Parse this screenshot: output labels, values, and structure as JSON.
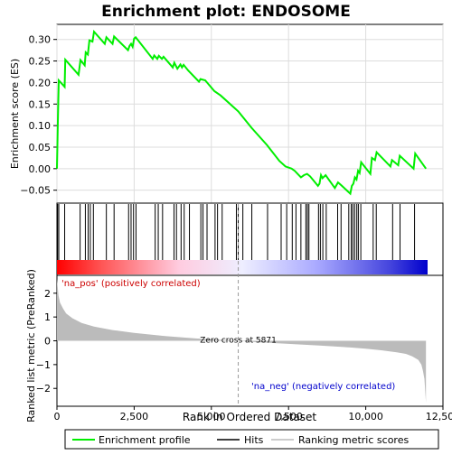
{
  "chart_data": {
    "type": "line",
    "title": "Enrichment plot: ENDOSOME",
    "top_panel": {
      "ylabel": "Enrichment score (ES)",
      "ylim": [
        -0.08,
        0.335
      ],
      "yticks": [
        -0.05,
        0.0,
        0.05,
        0.1,
        0.15,
        0.2,
        0.25,
        0.3
      ],
      "ytick_labels": [
        "−0.05",
        "0.00",
        "0.05",
        "0.10",
        "0.15",
        "0.20",
        "0.25",
        "0.30"
      ],
      "series": [
        {
          "name": "Enrichment profile",
          "color": "#00ee00",
          "x": [
            0,
            30,
            60,
            250,
            270,
            700,
            760,
            900,
            930,
            1000,
            1050,
            1150,
            1200,
            1550,
            1600,
            1800,
            1850,
            2300,
            2350,
            2400,
            2450,
            2500,
            2550,
            3100,
            3150,
            3250,
            3300,
            3400,
            3450,
            3750,
            3800,
            3900,
            4000,
            4050,
            4100,
            4250,
            4600,
            4650,
            4800,
            5100,
            5300,
            5871,
            6300,
            6800,
            7200,
            7400,
            7600,
            7700,
            7900,
            8000,
            8100,
            8200,
            8450,
            8500,
            8550,
            8600,
            8700,
            8800,
            9000,
            9100,
            9200,
            9500,
            9550,
            9600,
            9650,
            9700,
            9750,
            9800,
            9850,
            10150,
            10200,
            10300,
            10350,
            10800,
            10850,
            11050,
            11100,
            11550,
            11600,
            11950
          ],
          "y": [
            0.0,
            0.11,
            0.205,
            0.19,
            0.253,
            0.218,
            0.252,
            0.24,
            0.27,
            0.265,
            0.298,
            0.295,
            0.318,
            0.29,
            0.305,
            0.29,
            0.307,
            0.275,
            0.285,
            0.29,
            0.283,
            0.302,
            0.305,
            0.255,
            0.263,
            0.255,
            0.262,
            0.255,
            0.26,
            0.235,
            0.246,
            0.232,
            0.242,
            0.235,
            0.241,
            0.228,
            0.202,
            0.208,
            0.205,
            0.18,
            0.17,
            0.133,
            0.095,
            0.055,
            0.018,
            0.005,
            0.0,
            -0.005,
            -0.02,
            -0.015,
            -0.012,
            -0.018,
            -0.04,
            -0.035,
            -0.015,
            -0.022,
            -0.015,
            -0.025,
            -0.045,
            -0.032,
            -0.038,
            -0.058,
            -0.04,
            -0.035,
            -0.02,
            -0.025,
            -0.005,
            -0.01,
            0.015,
            -0.012,
            0.025,
            0.02,
            0.038,
            0.005,
            0.02,
            0.008,
            0.03,
            0.0,
            0.035,
            0.0
          ]
        }
      ]
    },
    "hits_panel": {
      "hit_positions": [
        20,
        60,
        250,
        750,
        920,
        1010,
        1080,
        1180,
        1600,
        1850,
        2320,
        2400,
        2480,
        2560,
        3180,
        3280,
        3420,
        3790,
        3870,
        4020,
        4120,
        4290,
        4660,
        4730,
        4860,
        5120,
        5200,
        5350,
        5810,
        5870,
        6020,
        6310,
        6820,
        7260,
        7440,
        7620,
        7740,
        7900,
        8060,
        8110,
        8160,
        8470,
        8530,
        8610,
        8720,
        9090,
        9200,
        9450,
        9530,
        9580,
        9640,
        9710,
        9760,
        9840,
        10240,
        10340,
        10870,
        11110,
        11580
      ],
      "gradient_stops": [
        "#ff0000",
        "#ff9999",
        "#ffccdd",
        "#ddddff",
        "#7777ee",
        "#0000cc"
      ]
    },
    "bottom_panel": {
      "ylabel": "Ranked list metric (PreRanked)",
      "xlabel": "Rank in Ordered Dataset",
      "ylim": [
        -2.75,
        2.75
      ],
      "yticks": [
        -2,
        -1,
        0,
        1,
        2
      ],
      "ytick_labels": [
        "−2",
        "−1",
        "0",
        "1",
        "2"
      ],
      "metric_curve": {
        "x": [
          0,
          50,
          100,
          200,
          300,
          500,
          800,
          1200,
          1800,
          2500,
          3500,
          4500,
          5000,
          5871,
          6500,
          7500,
          8500,
          9500,
          10000,
          10500,
          11000,
          11300,
          11500,
          11700,
          11800,
          11850,
          11900,
          11950
        ],
        "y": [
          2.6,
          1.9,
          1.6,
          1.35,
          1.15,
          0.95,
          0.75,
          0.6,
          0.45,
          0.33,
          0.2,
          0.1,
          0.06,
          0.0,
          -0.06,
          -0.13,
          -0.2,
          -0.28,
          -0.33,
          -0.4,
          -0.48,
          -0.55,
          -0.65,
          -0.8,
          -1.0,
          -1.25,
          -1.6,
          -2.6
        ]
      },
      "zero_cross_label": "Zero cross at 5871",
      "zero_cross": 5871,
      "pos_label": "'na_pos' (positively correlated)",
      "neg_label": "'na_neg' (negatively correlated)"
    },
    "xaxis": {
      "xlim": [
        0,
        12500
      ],
      "ticks": [
        0,
        2500,
        5000,
        7500,
        10000,
        12500
      ],
      "tick_labels": [
        "0",
        "2,500",
        "5,000",
        "7,500",
        "10,000",
        "12,500"
      ]
    },
    "legend": {
      "placement": "bottom",
      "entries": [
        {
          "label": "Enrichment profile",
          "color": "#00ee00"
        },
        {
          "label": "Hits",
          "color": "#000000"
        },
        {
          "label": "Ranking metric scores",
          "color": "#bbbbbb"
        }
      ]
    }
  }
}
